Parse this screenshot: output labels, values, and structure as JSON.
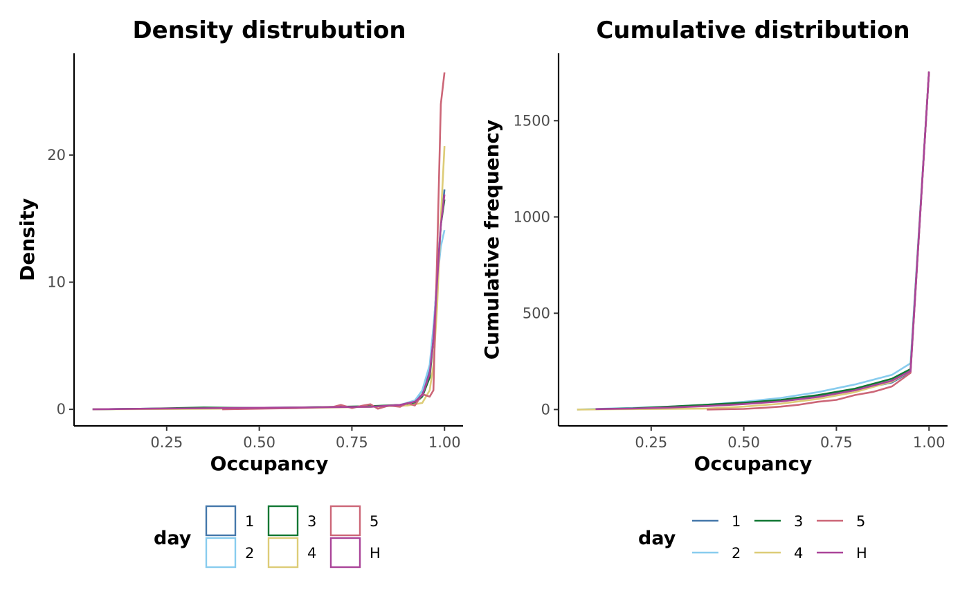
{
  "chart_data": [
    {
      "type": "line",
      "title": "Density distrubution",
      "xlabel": "Occupancy",
      "ylabel": "Density",
      "xlim": [
        0.0,
        1.05
      ],
      "ylim": [
        -1.3,
        28
      ],
      "xticks": [
        0.25,
        0.5,
        0.75,
        1.0
      ],
      "xtick_labels": [
        "0.25",
        "0.50",
        "0.75",
        "1.00"
      ],
      "yticks": [
        0,
        10,
        20
      ],
      "ytick_labels": [
        "0",
        "10",
        "20"
      ],
      "grid": false,
      "legend": {
        "title": "day",
        "position": "bottom",
        "key": "box"
      },
      "series": [
        {
          "name": "1",
          "color": "#4477AA",
          "x": [
            0.05,
            0.2,
            0.4,
            0.6,
            0.8,
            0.88,
            0.92,
            0.94,
            0.96,
            0.97,
            0.98,
            0.99,
            1.0
          ],
          "y": [
            0,
            0.05,
            0.1,
            0.15,
            0.2,
            0.35,
            0.6,
            1.2,
            3.0,
            6.0,
            10.5,
            14.5,
            17.3
          ]
        },
        {
          "name": "2",
          "color": "#88CCEE",
          "x": [
            0.05,
            0.2,
            0.4,
            0.6,
            0.8,
            0.88,
            0.92,
            0.94,
            0.96,
            0.97,
            0.98,
            0.99,
            1.0
          ],
          "y": [
            0,
            0.05,
            0.1,
            0.15,
            0.2,
            0.35,
            0.7,
            1.5,
            3.5,
            6.5,
            10.0,
            12.8,
            14.1
          ]
        },
        {
          "name": "3",
          "color": "#117733",
          "x": [
            0.05,
            0.2,
            0.35,
            0.5,
            0.6,
            0.7,
            0.8,
            0.88,
            0.92,
            0.94,
            0.96,
            0.97,
            0.98,
            0.99,
            1.0
          ],
          "y": [
            0,
            0.05,
            0.15,
            0.1,
            0.15,
            0.2,
            0.25,
            0.35,
            0.5,
            1.0,
            2.5,
            5.5,
            9.5,
            14.5,
            16.5
          ]
        },
        {
          "name": "4",
          "color": "#DDCC77",
          "x": [
            0.05,
            0.4,
            0.6,
            0.8,
            0.9,
            0.94,
            0.96,
            0.97,
            0.98,
            0.99,
            1.0
          ],
          "y": [
            0,
            0.05,
            0.1,
            0.2,
            0.3,
            0.5,
            1.5,
            3.5,
            8.0,
            15.0,
            20.7
          ]
        },
        {
          "name": "5",
          "color": "#CC6677",
          "x": [
            0.4,
            0.5,
            0.6,
            0.65,
            0.7,
            0.72,
            0.75,
            0.78,
            0.8,
            0.82,
            0.85,
            0.88,
            0.9,
            0.92,
            0.94,
            0.96,
            0.97,
            0.98,
            0.99,
            1.0
          ],
          "y": [
            0,
            0.05,
            0.1,
            0.15,
            0.2,
            0.35,
            0.1,
            0.3,
            0.4,
            0.05,
            0.3,
            0.2,
            0.5,
            0.3,
            1.2,
            1.0,
            1.5,
            12.0,
            24.0,
            26.5
          ]
        },
        {
          "name": "H",
          "color": "#AA4499",
          "x": [
            0.05,
            0.2,
            0.4,
            0.6,
            0.8,
            0.88,
            0.92,
            0.94,
            0.96,
            0.97,
            0.98,
            0.99,
            1.0
          ],
          "y": [
            0,
            0.05,
            0.1,
            0.15,
            0.2,
            0.35,
            0.6,
            1.1,
            2.8,
            5.5,
            10.0,
            14.5,
            16.9
          ]
        }
      ]
    },
    {
      "type": "line",
      "title": "Cumulative distribution",
      "xlabel": "Occupancy",
      "ylabel": "Cumulative frequency",
      "xlim": [
        0.0,
        1.05
      ],
      "ylim": [
        -85,
        1850
      ],
      "xticks": [
        0.25,
        0.5,
        0.75,
        1.0
      ],
      "xtick_labels": [
        "0.25",
        "0.50",
        "0.75",
        "1.00"
      ],
      "yticks": [
        0,
        500,
        1000,
        1500
      ],
      "ytick_labels": [
        "0",
        "500",
        "1000",
        "1500"
      ],
      "grid": false,
      "legend": {
        "title": "day",
        "position": "bottom",
        "key": "line"
      },
      "series": [
        {
          "name": "1",
          "color": "#4477AA",
          "x": [
            0.1,
            0.2,
            0.3,
            0.4,
            0.5,
            0.6,
            0.7,
            0.8,
            0.9,
            0.95,
            1.0
          ],
          "y": [
            2,
            5,
            12,
            20,
            30,
            45,
            70,
            100,
            140,
            195,
            1755
          ]
        },
        {
          "name": "2",
          "color": "#88CCEE",
          "x": [
            0.05,
            0.1,
            0.2,
            0.3,
            0.4,
            0.5,
            0.6,
            0.7,
            0.8,
            0.9,
            0.95,
            1.0
          ],
          "y": [
            0,
            3,
            8,
            15,
            25,
            40,
            60,
            90,
            130,
            180,
            240,
            1755
          ]
        },
        {
          "name": "3",
          "color": "#117733",
          "x": [
            0.1,
            0.2,
            0.3,
            0.4,
            0.5,
            0.6,
            0.7,
            0.8,
            0.9,
            0.95,
            1.0
          ],
          "y": [
            2,
            6,
            15,
            25,
            35,
            50,
            75,
            108,
            160,
            210,
            1755
          ]
        },
        {
          "name": "4",
          "color": "#DDCC77",
          "x": [
            0.05,
            0.2,
            0.4,
            0.5,
            0.6,
            0.7,
            0.8,
            0.9,
            0.95,
            1.0
          ],
          "y": [
            0,
            2,
            5,
            15,
            30,
            55,
            90,
            145,
            200,
            1755
          ]
        },
        {
          "name": "5",
          "color": "#CC6677",
          "x": [
            0.4,
            0.5,
            0.55,
            0.6,
            0.65,
            0.7,
            0.75,
            0.8,
            0.85,
            0.9,
            0.95,
            1.0
          ],
          "y": [
            0,
            3,
            8,
            15,
            25,
            40,
            50,
            75,
            92,
            120,
            190,
            1755
          ]
        },
        {
          "name": "H",
          "color": "#AA4499",
          "x": [
            0.1,
            0.2,
            0.3,
            0.4,
            0.5,
            0.6,
            0.7,
            0.8,
            0.9,
            0.95,
            1.0
          ],
          "y": [
            2,
            5,
            10,
            18,
            28,
            42,
            65,
            100,
            150,
            200,
            1755
          ]
        }
      ]
    }
  ]
}
